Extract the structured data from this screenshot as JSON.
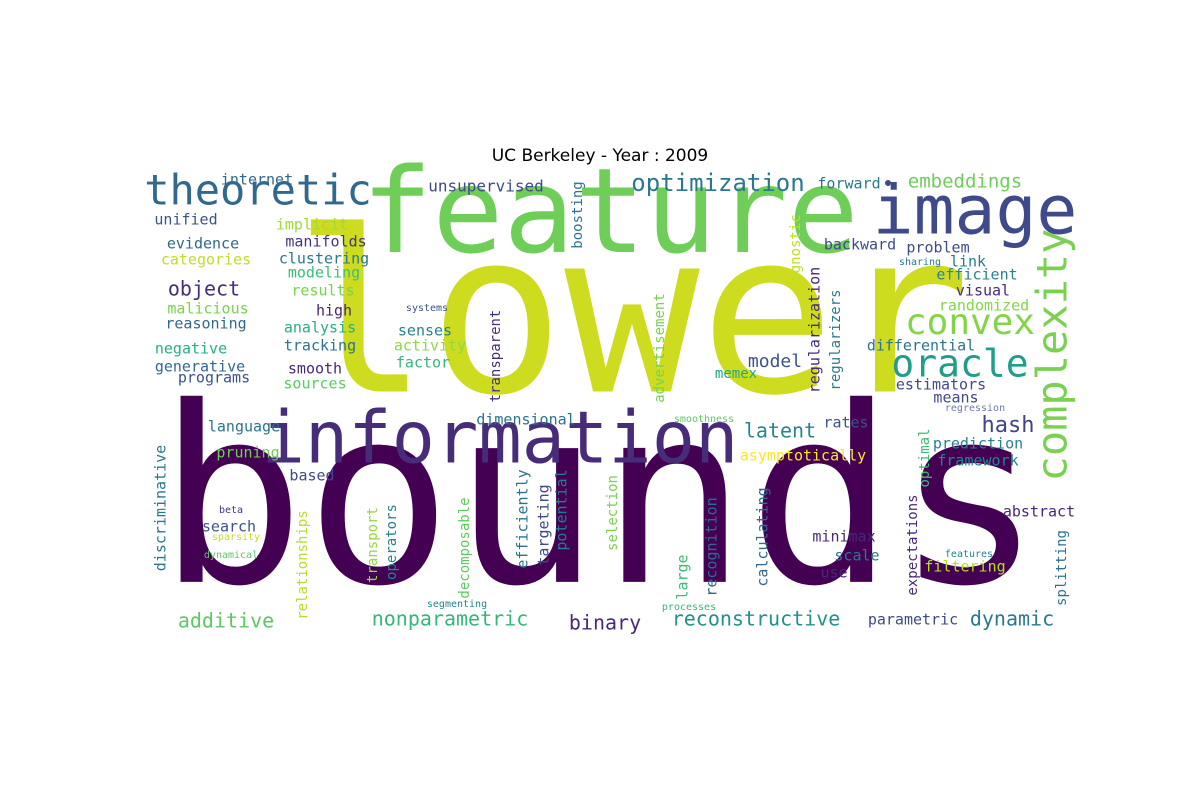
{
  "title": "UC Berkeley - Year : 2009",
  "words": [
    {
      "text": "bounds",
      "color": "#440154"
    },
    {
      "text": "lower",
      "color": "#cddc1e"
    },
    {
      "text": "feature",
      "color": "#6ece58"
    },
    {
      "text": "information",
      "color": "#472c7a"
    },
    {
      "text": "image",
      "color": "#3e4a89"
    },
    {
      "text": "theoretic",
      "color": "#31688e"
    },
    {
      "text": "complexity",
      "color": "#7ad151"
    },
    {
      "text": "oracle",
      "color": "#1f9e89"
    },
    {
      "text": "convex",
      "color": "#84d44b"
    },
    {
      "text": "optimization",
      "color": "#2a788e"
    },
    {
      "text": "embeddings",
      "color": "#6ece58"
    },
    {
      "text": "hash",
      "color": "#414487"
    },
    {
      "text": "latent",
      "color": "#25858e"
    },
    {
      "text": "additive",
      "color": "#5ec962"
    },
    {
      "text": "nonparametric",
      "color": "#35b779"
    },
    {
      "text": "reconstructive",
      "color": "#21918c"
    },
    {
      "text": "binary",
      "color": "#482878"
    },
    {
      "text": "dynamic",
      "color": "#2a788e"
    },
    {
      "text": "object",
      "color": "#472d7b"
    },
    {
      "text": "model",
      "color": "#3b528b"
    },
    {
      "text": "unsupervised",
      "color": "#3e4a89"
    },
    {
      "text": "internet",
      "color": "#31688e"
    },
    {
      "text": "unified",
      "color": "#3b528b"
    },
    {
      "text": "implicit",
      "color": "#a0da39"
    },
    {
      "text": "manifolds",
      "color": "#46327e"
    },
    {
      "text": "evidence",
      "color": "#31688e"
    },
    {
      "text": "categories",
      "color": "#bddf26"
    },
    {
      "text": "clustering",
      "color": "#2a788e"
    },
    {
      "text": "modeling",
      "color": "#3dbc74"
    },
    {
      "text": "results",
      "color": "#7ad151"
    },
    {
      "text": "malicious",
      "color": "#7ad151"
    },
    {
      "text": "reasoning",
      "color": "#31688e"
    },
    {
      "text": "high",
      "color": "#482475"
    },
    {
      "text": "analysis",
      "color": "#29af7f"
    },
    {
      "text": "negative",
      "color": "#29af7f"
    },
    {
      "text": "tracking",
      "color": "#2c728e"
    },
    {
      "text": "generative",
      "color": "#31688e"
    },
    {
      "text": "programs",
      "color": "#3b528b"
    },
    {
      "text": "smooth",
      "color": "#482677"
    },
    {
      "text": "sources",
      "color": "#5ec962"
    },
    {
      "text": "senses",
      "color": "#26828e"
    },
    {
      "text": "activity",
      "color": "#8fd744"
    },
    {
      "text": "factor",
      "color": "#35b779"
    },
    {
      "text": "systems",
      "color": "#3b528b"
    },
    {
      "text": "forward",
      "color": "#2a788e"
    },
    {
      "text": "boosting",
      "color": "#2c728e"
    },
    {
      "text": "backward",
      "color": "#3e4a89"
    },
    {
      "text": "problem",
      "color": "#3e4a89"
    },
    {
      "text": "link",
      "color": "#2a788e"
    },
    {
      "text": "sharing",
      "color": "#2a788e"
    },
    {
      "text": "efficient",
      "color": "#26828e"
    },
    {
      "text": "visual",
      "color": "#482878"
    },
    {
      "text": "randomized",
      "color": "#84d44b"
    },
    {
      "text": "agnostic",
      "color": "#bddf26"
    },
    {
      "text": "regularization",
      "color": "#482878"
    },
    {
      "text": "regularizers",
      "color": "#2a788e"
    },
    {
      "text": "differential",
      "color": "#2c728e"
    },
    {
      "text": "estimators",
      "color": "#3e4a89"
    },
    {
      "text": "means",
      "color": "#3e4a89"
    },
    {
      "text": "regression",
      "color": "#6b7bab"
    },
    {
      "text": "memex",
      "color": "#22a884"
    },
    {
      "text": "advertisement",
      "color": "#7ad151"
    },
    {
      "text": "transparent",
      "color": "#472d7b"
    },
    {
      "text": "dimensional",
      "color": "#2c728e"
    },
    {
      "text": "smoothness",
      "color": "#5ec962"
    },
    {
      "text": "rates",
      "color": "#3b528b"
    },
    {
      "text": "language",
      "color": "#2c728e"
    },
    {
      "text": "pruning",
      "color": "#6ece58"
    },
    {
      "text": "based",
      "color": "#3e4a89"
    },
    {
      "text": "discriminative",
      "color": "#2a788e"
    },
    {
      "text": "asymptotically",
      "color": "#fde725"
    },
    {
      "text": "prediction",
      "color": "#26828e"
    },
    {
      "text": "framework",
      "color": "#26828e"
    },
    {
      "text": "optimal",
      "color": "#3dbc74"
    },
    {
      "text": "search",
      "color": "#3b528b"
    },
    {
      "text": "beta",
      "color": "#46327e"
    },
    {
      "text": "sparsity",
      "color": "#c2df23"
    },
    {
      "text": "dynamical",
      "color": "#5ec962"
    },
    {
      "text": "relationships",
      "color": "#b5de2b"
    },
    {
      "text": "transport",
      "color": "#95d840"
    },
    {
      "text": "operators",
      "color": "#26828e"
    },
    {
      "text": "decomposable",
      "color": "#5ec962"
    },
    {
      "text": "efficiently",
      "color": "#2c728e"
    },
    {
      "text": "targeting",
      "color": "#3e4a89"
    },
    {
      "text": "potential",
      "color": "#2a788e"
    },
    {
      "text": "selection",
      "color": "#7ad151"
    },
    {
      "text": "large",
      "color": "#3dbc74"
    },
    {
      "text": "recognition",
      "color": "#31688e"
    },
    {
      "text": "calculating",
      "color": "#31688e"
    },
    {
      "text": "minimax",
      "color": "#482878"
    },
    {
      "text": "scale",
      "color": "#2a788e"
    },
    {
      "text": "use",
      "color": "#482878"
    },
    {
      "text": "expectations",
      "color": "#482878"
    },
    {
      "text": "filtering",
      "color": "#b5de2b"
    },
    {
      "text": "abstract",
      "color": "#482878"
    },
    {
      "text": "splitting",
      "color": "#2c728e"
    },
    {
      "text": "features",
      "color": "#26828e"
    },
    {
      "text": "segmenting",
      "color": "#26828e"
    },
    {
      "text": "processes",
      "color": "#35b779"
    },
    {
      "text": "parametric",
      "color": "#3e4a89"
    }
  ]
}
